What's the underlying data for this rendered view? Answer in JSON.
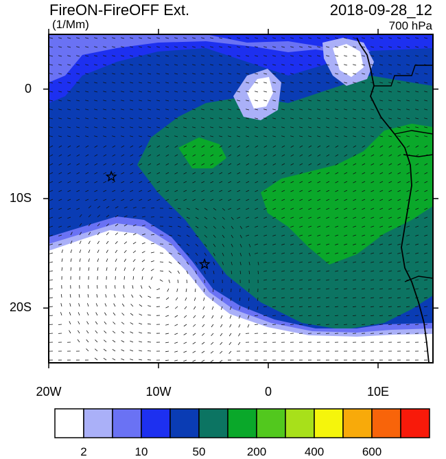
{
  "header": {
    "title": "FireON-FireOFF Ext.",
    "date": "2018-09-28_12",
    "units": "(1/Mm)",
    "level": "700 hPa"
  },
  "axes": {
    "x_ticks": [
      {
        "label": "20W",
        "lon": -20
      },
      {
        "label": "10W",
        "lon": -10
      },
      {
        "label": "0",
        "lon": 0
      },
      {
        "label": "10E",
        "lon": 10
      }
    ],
    "y_ticks": [
      {
        "label": "0",
        "lat": 0
      },
      {
        "label": "10S",
        "lat": -10
      },
      {
        "label": "20S",
        "lat": -20
      }
    ],
    "lon_range": [
      -20,
      15
    ],
    "lat_range": [
      -25,
      5
    ]
  },
  "colorbar": {
    "colors": [
      "#ffffff",
      "#aab0f8",
      "#6a72f4",
      "#1d30f0",
      "#0a3cb4",
      "#0c7462",
      "#0aa82a",
      "#52c81e",
      "#a8e01a",
      "#f5f50c",
      "#f8aa0a",
      "#f8640a",
      "#f81a0a"
    ],
    "labels": [
      {
        "text": "2",
        "index": 1
      },
      {
        "text": "10",
        "index": 3
      },
      {
        "text": "50",
        "index": 5
      },
      {
        "text": "200",
        "index": 7
      },
      {
        "text": "400",
        "index": 9
      },
      {
        "text": "600",
        "index": 11
      }
    ]
  },
  "markers": [
    {
      "name": "star",
      "lon": -14.3,
      "lat": -8.0
    },
    {
      "name": "star",
      "lon": -5.8,
      "lat": -16.0
    }
  ]
}
